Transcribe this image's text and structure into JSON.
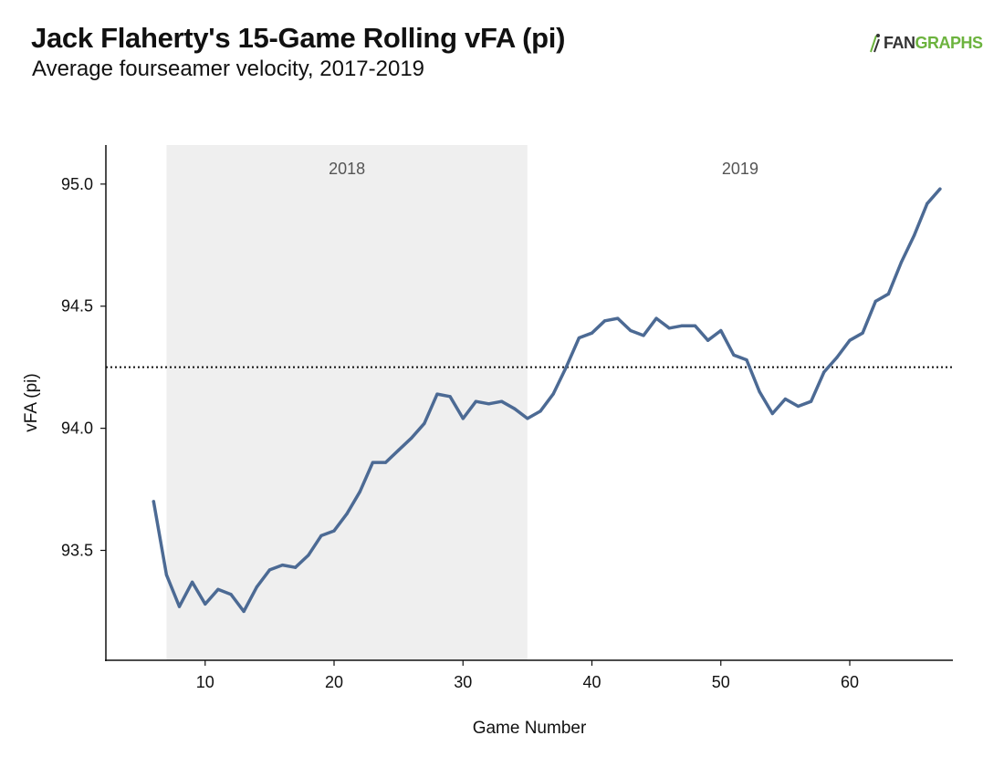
{
  "title": "Jack Flaherty's 15-Game Rolling vFA (pi)",
  "subtitle": "Average fourseamer velocity, 2017-2019",
  "brand": {
    "fan": "FAN",
    "graphs": "GRAPHS",
    "fan_color": "#333333",
    "graphs_color": "#6cb33e"
  },
  "chart_data": {
    "type": "line",
    "xlabel": "Game Number",
    "ylabel": "vFA (pi)",
    "xlim": [
      2.3,
      68
    ],
    "ylim": [
      93.05,
      95.16
    ],
    "x_ticks": [
      10,
      20,
      30,
      40,
      50,
      60
    ],
    "y_ticks": [
      93.5,
      94.0,
      94.5,
      95.0
    ],
    "y_tick_labels": [
      "93.5",
      "94.0",
      "94.5",
      "95.0"
    ],
    "line_color": "#4c6a94",
    "reference_line": {
      "y": 94.25,
      "style": "dotted"
    },
    "shaded_regions": [
      {
        "label": "2018",
        "x_start": 7,
        "x_end": 35,
        "color": "#efefef"
      },
      {
        "label": "2019",
        "x_start": 35,
        "x_end": 68,
        "color": "#ffffff"
      }
    ],
    "grid": false,
    "series": [
      {
        "x": [
          6,
          7,
          8,
          9,
          10,
          11,
          12,
          13,
          14,
          15,
          16,
          17,
          18,
          19,
          20,
          21,
          22,
          23,
          24,
          25,
          26,
          27,
          28,
          29,
          30,
          31,
          32,
          33,
          34,
          35,
          36,
          37,
          38,
          39,
          40,
          41,
          42,
          43,
          44,
          45,
          46,
          47,
          48,
          49,
          50,
          51,
          52,
          53,
          54,
          55,
          56,
          57,
          58,
          59,
          60,
          61,
          62,
          63,
          64,
          65,
          66,
          67
        ],
        "values": [
          93.7,
          93.4,
          93.27,
          93.37,
          93.28,
          93.34,
          93.32,
          93.25,
          93.35,
          93.42,
          93.44,
          93.43,
          93.48,
          93.56,
          93.58,
          93.65,
          93.74,
          93.86,
          93.86,
          93.91,
          93.96,
          94.02,
          94.14,
          94.13,
          94.04,
          94.11,
          94.1,
          94.11,
          94.08,
          94.04,
          94.07,
          94.14,
          94.25,
          94.37,
          94.39,
          94.44,
          94.45,
          94.4,
          94.38,
          94.45,
          94.41,
          94.42,
          94.42,
          94.36,
          94.4,
          94.3,
          94.28,
          94.15,
          94.06,
          94.12,
          94.09,
          94.11,
          94.23,
          94.29,
          94.36,
          94.39,
          94.52,
          94.55,
          94.68,
          94.79,
          94.92,
          94.98
        ]
      }
    ]
  }
}
